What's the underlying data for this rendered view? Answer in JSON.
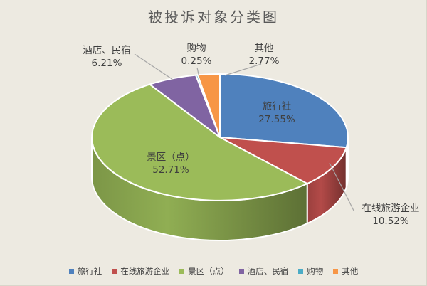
{
  "chart_data": {
    "type": "pie",
    "title": "被投诉对象分类图",
    "is_3d": true,
    "start_angle_deg": 0,
    "direction": "clockwise",
    "legend_position": "bottom",
    "slices": [
      {
        "name": "旅行社",
        "value": 27.55,
        "percent_label": "27.55%",
        "color": "#4F81BD",
        "label_placement": "inside"
      },
      {
        "name": "在线旅游企业",
        "value": 10.52,
        "percent_label": "10.52%",
        "color": "#C0504D",
        "label_placement": "outside"
      },
      {
        "name": "景区（点）",
        "value": 52.71,
        "percent_label": "52.71%",
        "color": "#9BBB59",
        "label_placement": "inside"
      },
      {
        "name": "酒店、民宿",
        "value": 6.21,
        "percent_label": "6.21%",
        "color": "#8064A2",
        "label_placement": "outside"
      },
      {
        "name": "购物",
        "value": 0.25,
        "percent_label": "0.25%",
        "color": "#4BACC6",
        "label_placement": "outside"
      },
      {
        "name": "其他",
        "value": 2.77,
        "percent_label": "2.77%",
        "color": "#F79646",
        "label_placement": "outside"
      }
    ],
    "colors": {
      "background": "#EDEAE1",
      "title_text": "#595959",
      "label_text": "#3F3F3F",
      "legend_text": "#404040",
      "leader_line": "#A6A6A6",
      "slice_outline": "#FFFFFF"
    }
  }
}
